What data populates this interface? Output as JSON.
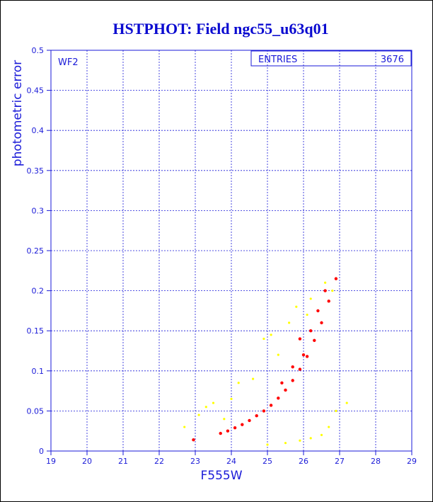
{
  "chart_data": {
    "type": "scatter",
    "title": "HSTPHOT: Field ngc55_u63q01",
    "xlabel": "F555W",
    "ylabel": "photometric error",
    "xlim": [
      19,
      29
    ],
    "ylim": [
      0,
      0.5
    ],
    "xticks": [
      19,
      20,
      21,
      22,
      23,
      24,
      25,
      26,
      27,
      28,
      29
    ],
    "yticks": [
      0,
      0.05,
      0.1,
      0.15,
      0.2,
      0.25,
      0.3,
      0.35,
      0.4,
      0.45,
      0.5
    ],
    "grid": true,
    "annotation": "WF2",
    "stats_box": {
      "label": "ENTRIES",
      "value": "3676"
    },
    "series": [
      {
        "color": "#ff0000",
        "points": [
          [
            22.95,
            0.014
          ],
          [
            23.7,
            0.022
          ],
          [
            23.9,
            0.025
          ],
          [
            24.1,
            0.029
          ],
          [
            24.3,
            0.033
          ],
          [
            24.5,
            0.038
          ],
          [
            24.7,
            0.044
          ],
          [
            24.9,
            0.05
          ],
          [
            25.1,
            0.057
          ],
          [
            25.3,
            0.066
          ],
          [
            25.5,
            0.076
          ],
          [
            25.7,
            0.088
          ],
          [
            25.9,
            0.102
          ],
          [
            26.1,
            0.118
          ],
          [
            26.3,
            0.138
          ],
          [
            26.5,
            0.16
          ],
          [
            26.7,
            0.187
          ],
          [
            26.9,
            0.215
          ],
          [
            26.0,
            0.12
          ],
          [
            26.2,
            0.15
          ],
          [
            25.7,
            0.105
          ],
          [
            25.4,
            0.085
          ],
          [
            26.4,
            0.175
          ],
          [
            25.9,
            0.14
          ],
          [
            26.6,
            0.2
          ]
        ]
      },
      {
        "color": "#ffff00",
        "points": [
          [
            22.7,
            0.03
          ],
          [
            23.1,
            0.045
          ],
          [
            23.3,
            0.055
          ],
          [
            23.5,
            0.06
          ],
          [
            23.8,
            0.04
          ],
          [
            24.2,
            0.085
          ],
          [
            24.6,
            0.09
          ],
          [
            24.9,
            0.14
          ],
          [
            25.1,
            0.145
          ],
          [
            25.3,
            0.12
          ],
          [
            25.6,
            0.16
          ],
          [
            25.8,
            0.18
          ],
          [
            26.1,
            0.17
          ],
          [
            26.2,
            0.19
          ],
          [
            24.0,
            0.065
          ],
          [
            25.0,
            0.008
          ],
          [
            25.5,
            0.01
          ],
          [
            25.9,
            0.013
          ],
          [
            26.2,
            0.016
          ],
          [
            26.5,
            0.02
          ],
          [
            26.7,
            0.03
          ],
          [
            26.9,
            0.05
          ],
          [
            27.2,
            0.06
          ],
          [
            26.6,
            0.21
          ],
          [
            26.8,
            0.2
          ]
        ]
      }
    ]
  },
  "colors": {
    "axis": "#1a1ad8",
    "title": "#0a0ad0",
    "series_main": "#ff0000",
    "series_secondary": "#ffff00"
  }
}
